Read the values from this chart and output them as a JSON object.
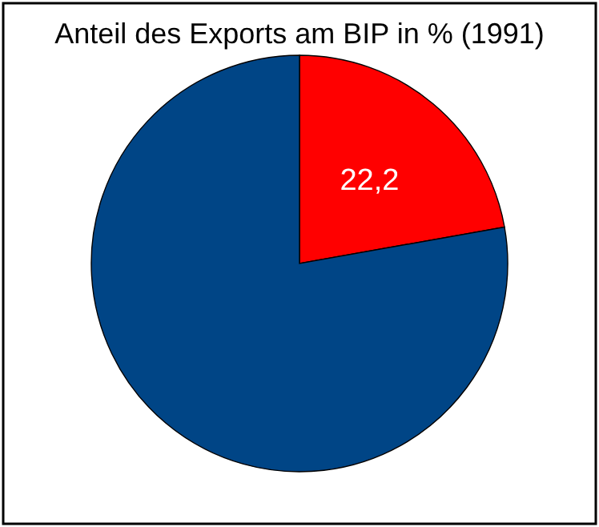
{
  "chart_data": {
    "type": "pie",
    "title": "Anteil des Exports am BIP in % (1991)",
    "categories": [
      null,
      null
    ],
    "values": [
      22.2,
      77.8
    ],
    "colors": [
      "#ff0000",
      "#004586"
    ],
    "value_labels": [
      "22,2",
      null
    ],
    "legend": false
  }
}
